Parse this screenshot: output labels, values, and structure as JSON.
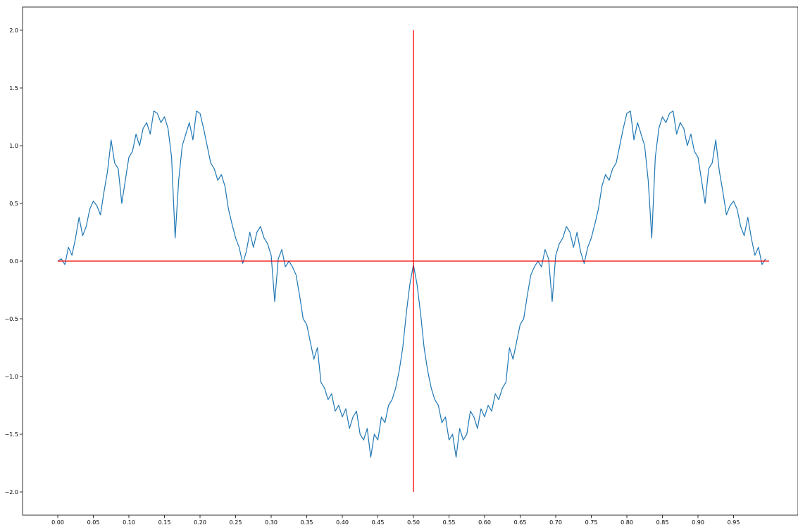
{
  "chart_data": {
    "type": "line",
    "title": "",
    "xlabel": "",
    "ylabel": "",
    "xlim": [
      -0.05,
      1.05
    ],
    "ylim": [
      -2.2,
      2.2
    ],
    "x_ticks": [
      "0.00",
      "0.05",
      "0.10",
      "0.15",
      "0.20",
      "0.25",
      "0.30",
      "0.35",
      "0.40",
      "0.45",
      "0.50",
      "0.55",
      "0.60",
      "0.65",
      "0.70",
      "0.75",
      "0.80",
      "0.85",
      "0.90",
      "0.95"
    ],
    "x_tick_values": [
      0.0,
      0.05,
      0.1,
      0.15,
      0.2,
      0.25,
      0.3,
      0.35,
      0.4,
      0.45,
      0.5,
      0.55,
      0.6,
      0.65,
      0.7,
      0.75,
      0.8,
      0.85,
      0.9,
      0.95
    ],
    "y_ticks": [
      "2.0",
      "1.5",
      "1.0",
      "0.5",
      "0.0",
      "−0.5",
      "−1.0",
      "−1.5",
      "−2.0"
    ],
    "y_tick_values": [
      2.0,
      1.5,
      1.0,
      0.5,
      0.0,
      -0.5,
      -1.0,
      -1.5,
      -2.0
    ],
    "grid": false,
    "series": [
      {
        "color": "#1f77b4",
        "x": [
          0.0,
          0.005,
          0.01,
          0.015,
          0.02,
          0.025,
          0.03,
          0.035,
          0.04,
          0.045,
          0.05,
          0.055,
          0.06,
          0.065,
          0.07,
          0.075,
          0.08,
          0.085,
          0.09,
          0.095,
          0.1,
          0.105,
          0.11,
          0.115,
          0.12,
          0.125,
          0.13,
          0.135,
          0.14,
          0.145,
          0.15,
          0.155,
          0.16,
          0.165,
          0.17,
          0.175,
          0.18,
          0.185,
          0.19,
          0.195,
          0.2,
          0.205,
          0.21,
          0.215,
          0.22,
          0.225,
          0.23,
          0.235,
          0.24,
          0.245,
          0.25,
          0.255,
          0.26,
          0.265,
          0.27,
          0.275,
          0.28,
          0.285,
          0.29,
          0.295,
          0.3,
          0.305,
          0.31,
          0.315,
          0.32,
          0.325,
          0.33,
          0.335,
          0.34,
          0.345,
          0.35,
          0.355,
          0.36,
          0.365,
          0.37,
          0.375,
          0.38,
          0.385,
          0.39,
          0.395,
          0.4,
          0.405,
          0.41,
          0.415,
          0.42,
          0.425,
          0.43,
          0.435,
          0.44,
          0.445,
          0.45,
          0.455,
          0.46,
          0.465,
          0.47,
          0.475,
          0.48,
          0.485,
          0.49,
          0.495,
          0.5,
          0.505,
          0.51,
          0.515,
          0.52,
          0.525,
          0.53,
          0.535,
          0.54,
          0.545,
          0.55,
          0.555,
          0.56,
          0.565,
          0.57,
          0.575,
          0.58,
          0.585,
          0.59,
          0.595,
          0.6,
          0.605,
          0.61,
          0.615,
          0.62,
          0.625,
          0.63,
          0.635,
          0.64,
          0.645,
          0.65,
          0.655,
          0.66,
          0.665,
          0.67,
          0.675,
          0.68,
          0.685,
          0.69,
          0.695,
          0.7,
          0.705,
          0.71,
          0.715,
          0.72,
          0.725,
          0.73,
          0.735,
          0.74,
          0.745,
          0.75,
          0.755,
          0.76,
          0.765,
          0.77,
          0.775,
          0.78,
          0.785,
          0.79,
          0.795,
          0.8,
          0.805,
          0.81,
          0.815,
          0.82,
          0.825,
          0.83,
          0.835,
          0.84,
          0.845,
          0.85,
          0.855,
          0.86,
          0.865,
          0.87,
          0.875,
          0.88,
          0.885,
          0.89,
          0.895,
          0.9,
          0.905,
          0.91,
          0.915,
          0.92,
          0.925,
          0.93,
          0.935,
          0.94,
          0.945,
          0.95,
          0.955,
          0.96,
          0.965,
          0.97,
          0.975,
          0.98,
          0.985,
          0.99,
          0.995
        ],
        "y": [
          0.0,
          0.02,
          -0.03,
          0.12,
          0.05,
          0.2,
          0.38,
          0.22,
          0.3,
          0.45,
          0.52,
          0.48,
          0.4,
          0.6,
          0.78,
          1.05,
          0.85,
          0.8,
          0.5,
          0.7,
          0.9,
          0.95,
          1.1,
          1.0,
          1.15,
          1.2,
          1.1,
          1.3,
          1.28,
          1.2,
          1.25,
          1.15,
          0.9,
          0.2,
          0.7,
          1.0,
          1.1,
          1.2,
          1.05,
          1.3,
          1.28,
          1.15,
          1.0,
          0.85,
          0.8,
          0.7,
          0.75,
          0.65,
          0.45,
          0.32,
          0.2,
          0.12,
          -0.02,
          0.08,
          0.25,
          0.12,
          0.25,
          0.3,
          0.2,
          0.15,
          0.05,
          -0.35,
          0.02,
          0.1,
          -0.05,
          0.0,
          -0.05,
          -0.12,
          -0.3,
          -0.5,
          -0.55,
          -0.7,
          -0.85,
          -0.75,
          -1.05,
          -1.1,
          -1.2,
          -1.15,
          -1.3,
          -1.25,
          -1.35,
          -1.28,
          -1.45,
          -1.35,
          -1.3,
          -1.5,
          -1.55,
          -1.45,
          -1.7,
          -1.5,
          -1.55,
          -1.35,
          -1.4,
          -1.25,
          -1.2,
          -1.1,
          -0.95,
          -0.75,
          -0.45,
          -0.2,
          -0.03,
          -0.2,
          -0.45,
          -0.75,
          -0.95,
          -1.1,
          -1.2,
          -1.25,
          -1.4,
          -1.35,
          -1.55,
          -1.5,
          -1.7,
          -1.45,
          -1.55,
          -1.5,
          -1.3,
          -1.35,
          -1.45,
          -1.28,
          -1.35,
          -1.25,
          -1.3,
          -1.15,
          -1.2,
          -1.1,
          -1.05,
          -0.75,
          -0.85,
          -0.7,
          -0.55,
          -0.5,
          -0.3,
          -0.12,
          -0.05,
          0.0,
          -0.05,
          0.1,
          0.02,
          -0.35,
          0.05,
          0.15,
          0.2,
          0.3,
          0.25,
          0.12,
          0.25,
          0.08,
          -0.02,
          0.12,
          0.2,
          0.32,
          0.45,
          0.65,
          0.75,
          0.7,
          0.8,
          0.85,
          1.0,
          1.15,
          1.28,
          1.3,
          1.05,
          1.2,
          1.1,
          1.0,
          0.7,
          0.2,
          0.9,
          1.15,
          1.25,
          1.2,
          1.28,
          1.3,
          1.1,
          1.2,
          1.15,
          1.0,
          1.1,
          0.95,
          0.9,
          0.7,
          0.5,
          0.8,
          0.85,
          1.05,
          0.78,
          0.6,
          0.4,
          0.48,
          0.52,
          0.45,
          0.3,
          0.22,
          0.38,
          0.2,
          0.05,
          0.12,
          -0.03,
          0.02
        ]
      },
      {
        "color": "#ff0000",
        "x": [
          0.0,
          1.0
        ],
        "y": [
          0.0,
          0.0
        ]
      },
      {
        "color": "#ff0000",
        "x": [
          0.5,
          0.5
        ],
        "y": [
          2.0,
          -2.0
        ]
      }
    ]
  }
}
